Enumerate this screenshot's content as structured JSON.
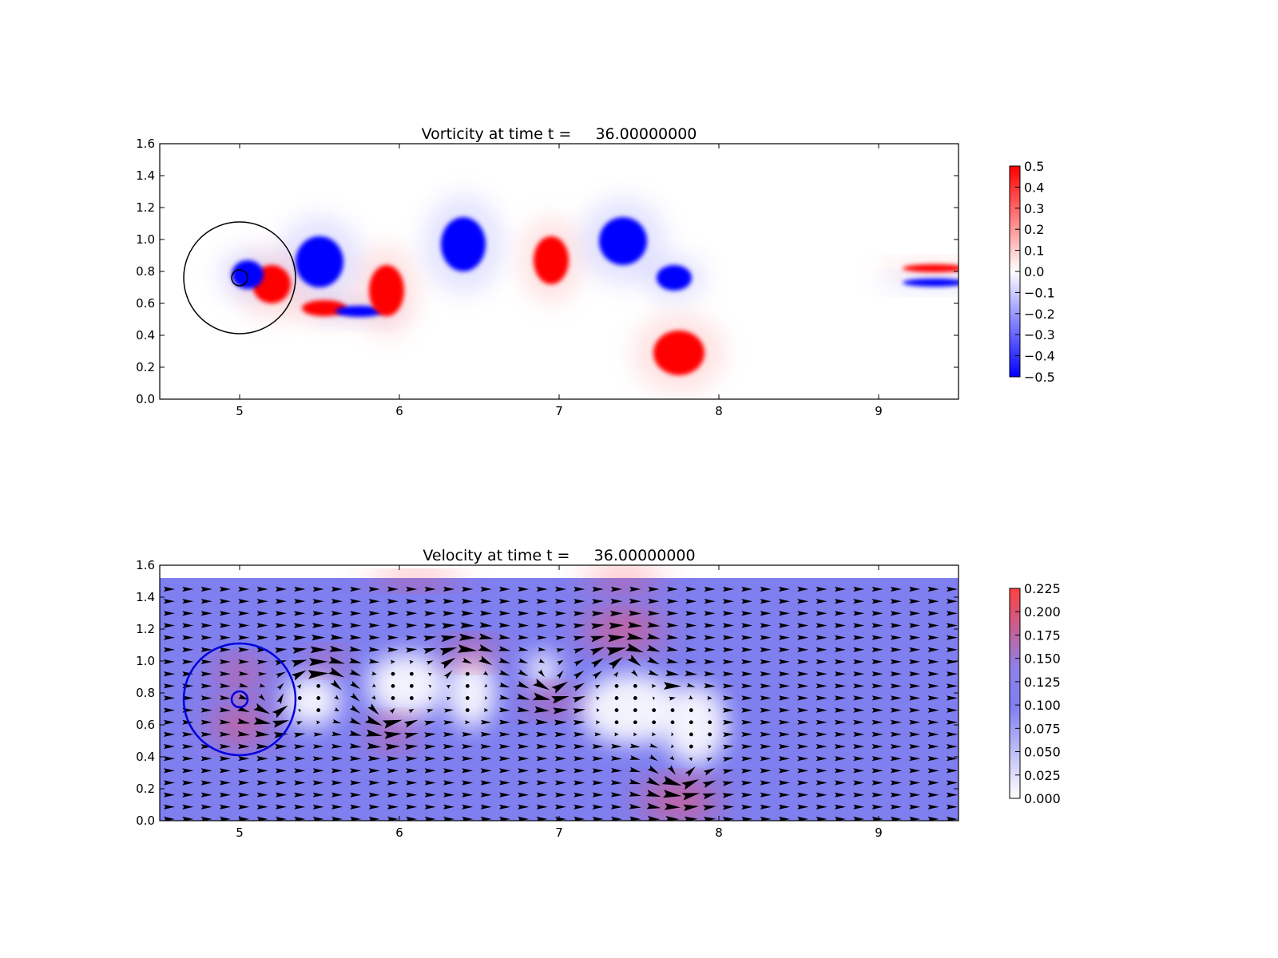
{
  "chart_data": [
    {
      "type": "heatmap",
      "title": "Vorticity at time t =     36.00000000",
      "xlabel": "",
      "ylabel": "",
      "xlim": [
        4.5,
        9.5
      ],
      "ylim": [
        0.0,
        1.6
      ],
      "xticks": [
        "5",
        "6",
        "7",
        "8",
        "9"
      ],
      "yticks": [
        "0.0",
        "0.2",
        "0.4",
        "0.6",
        "0.8",
        "1.0",
        "1.2",
        "1.4",
        "1.6"
      ],
      "colorbar": {
        "range": [
          -0.5,
          0.5
        ],
        "ticks": [
          "0.5",
          "0.4",
          "0.3",
          "0.2",
          "0.1",
          "0.0",
          "−0.1",
          "−0.2",
          "−0.3",
          "−0.4",
          "−0.5"
        ],
        "colormap": "bwr",
        "low_color": "#0000ff",
        "mid_color": "#ffffff",
        "high_color": "#ff0000"
      },
      "circles": [
        {
          "cx": 5.0,
          "cy": 0.76,
          "r": 0.35,
          "color": "#000000"
        },
        {
          "cx": 5.0,
          "cy": 0.76,
          "r": 0.05,
          "color": "#000000"
        }
      ],
      "vortices": [
        {
          "x": 5.5,
          "y": 0.86,
          "rx": 0.15,
          "ry": 0.16,
          "sign": -1
        },
        {
          "x": 5.2,
          "y": 0.72,
          "rx": 0.12,
          "ry": 0.12,
          "sign": 1
        },
        {
          "x": 5.05,
          "y": 0.78,
          "rx": 0.1,
          "ry": 0.09,
          "sign": -1
        },
        {
          "x": 5.53,
          "y": 0.57,
          "rx": 0.14,
          "ry": 0.05,
          "sign": 1
        },
        {
          "x": 5.75,
          "y": 0.55,
          "rx": 0.15,
          "ry": 0.035,
          "sign": -1
        },
        {
          "x": 5.92,
          "y": 0.68,
          "rx": 0.11,
          "ry": 0.16,
          "sign": 1
        },
        {
          "x": 6.4,
          "y": 0.97,
          "rx": 0.14,
          "ry": 0.17,
          "sign": -1
        },
        {
          "x": 6.95,
          "y": 0.87,
          "rx": 0.11,
          "ry": 0.15,
          "sign": 1
        },
        {
          "x": 7.4,
          "y": 0.99,
          "rx": 0.15,
          "ry": 0.15,
          "sign": -1
        },
        {
          "x": 7.72,
          "y": 0.76,
          "rx": 0.11,
          "ry": 0.08,
          "sign": -1
        },
        {
          "x": 7.75,
          "y": 0.29,
          "rx": 0.16,
          "ry": 0.14,
          "sign": 1
        },
        {
          "x": 9.35,
          "y": 0.82,
          "rx": 0.2,
          "ry": 0.025,
          "sign": 1
        },
        {
          "x": 9.35,
          "y": 0.73,
          "rx": 0.2,
          "ry": 0.025,
          "sign": -1
        }
      ]
    },
    {
      "type": "heatmap",
      "subtype": "quiver",
      "title": "Velocity at time t =     36.00000000",
      "xlabel": "",
      "ylabel": "",
      "xlim": [
        4.5,
        9.5
      ],
      "ylim": [
        0.0,
        1.6
      ],
      "field_ylim": [
        0.0,
        1.52
      ],
      "xticks": [
        "5",
        "6",
        "7",
        "8",
        "9"
      ],
      "yticks": [
        "0.0",
        "0.2",
        "0.4",
        "0.6",
        "0.8",
        "1.0",
        "1.2",
        "1.4",
        "1.6"
      ],
      "colorbar": {
        "range": [
          0.0,
          0.225
        ],
        "ticks": [
          "0.225",
          "0.200",
          "0.175",
          "0.150",
          "0.125",
          "0.100",
          "0.075",
          "0.050",
          "0.025",
          "0.000"
        ],
        "colormap": "white-blue-red",
        "low_color": "#ffffff",
        "mid_color": "#7f7ff0",
        "high_color": "#ff4040"
      },
      "background_speed": 0.1,
      "circles": [
        {
          "cx": 5.0,
          "cy": 0.76,
          "r": 0.35,
          "color": "#0000dd"
        },
        {
          "cx": 5.0,
          "cy": 0.76,
          "r": 0.05,
          "color": "#0000dd"
        }
      ],
      "vortices": [
        {
          "x": 5.5,
          "y": 0.86,
          "r": 0.17,
          "sign": -1
        },
        {
          "x": 5.2,
          "y": 0.72,
          "r": 0.13,
          "sign": 1
        },
        {
          "x": 5.92,
          "y": 0.68,
          "r": 0.15,
          "sign": 1
        },
        {
          "x": 6.4,
          "y": 0.97,
          "r": 0.16,
          "sign": -1
        },
        {
          "x": 6.95,
          "y": 0.87,
          "r": 0.14,
          "sign": 1
        },
        {
          "x": 7.4,
          "y": 0.99,
          "r": 0.17,
          "sign": -1
        },
        {
          "x": 7.72,
          "y": 0.76,
          "r": 0.1,
          "sign": -1
        },
        {
          "x": 7.75,
          "y": 0.29,
          "r": 0.17,
          "sign": 1
        }
      ],
      "quiver_nx": 43,
      "quiver_ny": 20
    }
  ]
}
